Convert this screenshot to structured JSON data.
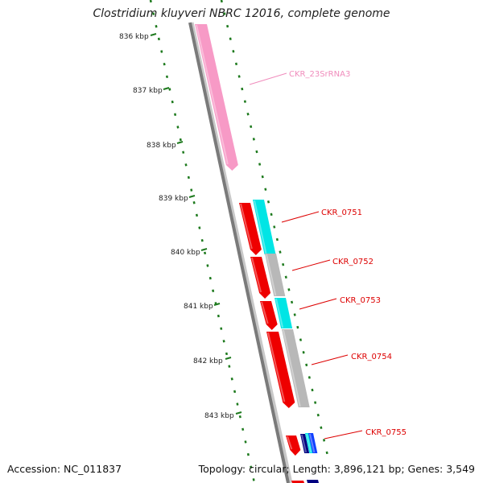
{
  "header": {
    "title": "Clostridium kluyveri NBRC 12016, complete genome"
  },
  "footer": {
    "accession": "Accession: NC_011837",
    "summary": "Topology: circular; Length: 3,896,121 bp; Genes: 3,549"
  },
  "map": {
    "ruler_ticks": [
      "836 kbp",
      "837 kbp",
      "838 kbp",
      "839 kbp",
      "840 kbp",
      "841 kbp",
      "842 kbp",
      "843 kbp"
    ],
    "colors": {
      "backbone": "#8a8a8a",
      "tick_dots": "#1e7a1e",
      "rna": "#f79ac6",
      "cds": "#ee0000",
      "cog_cyan": "#00e5e5",
      "cog_grey": "#b8b8b8",
      "cog_navy": "#000080",
      "cog_blue": "#1040ff",
      "label_red": "#dd0000",
      "label_pink": "#f08cbc"
    },
    "features": [
      {
        "label": "CKR_23SrRNA3",
        "kind": "rna"
      },
      {
        "label": "CKR_0751",
        "kind": "cds"
      },
      {
        "label": "CKR_0752",
        "kind": "cds"
      },
      {
        "label": "CKR_0753",
        "kind": "cds"
      },
      {
        "label": "CKR_0754",
        "kind": "cds"
      },
      {
        "label": "CKR_0755",
        "kind": "cds"
      }
    ]
  }
}
